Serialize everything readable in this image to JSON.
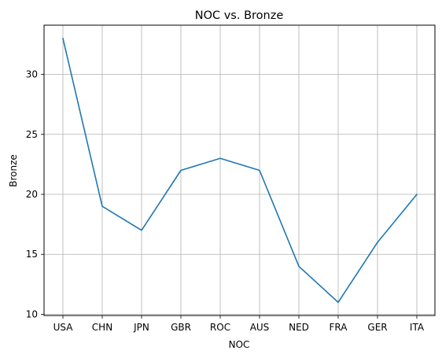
{
  "chart_data": {
    "type": "line",
    "title": "NOC vs. Bronze",
    "xlabel": "NOC",
    "ylabel": "Bronze",
    "categories": [
      "USA",
      "CHN",
      "JPN",
      "GBR",
      "ROC",
      "AUS",
      "NED",
      "FRA",
      "GER",
      "ITA"
    ],
    "series": [
      {
        "values": [
          33,
          19,
          17,
          22,
          23,
          22,
          14,
          11,
          16,
          20
        ]
      }
    ],
    "yticks": [
      10,
      15,
      20,
      25,
      30
    ],
    "ylim": [
      9.9,
      34.1
    ],
    "grid": true,
    "line_color": "#1f77b4",
    "grid_color": "#b0b0b0"
  }
}
